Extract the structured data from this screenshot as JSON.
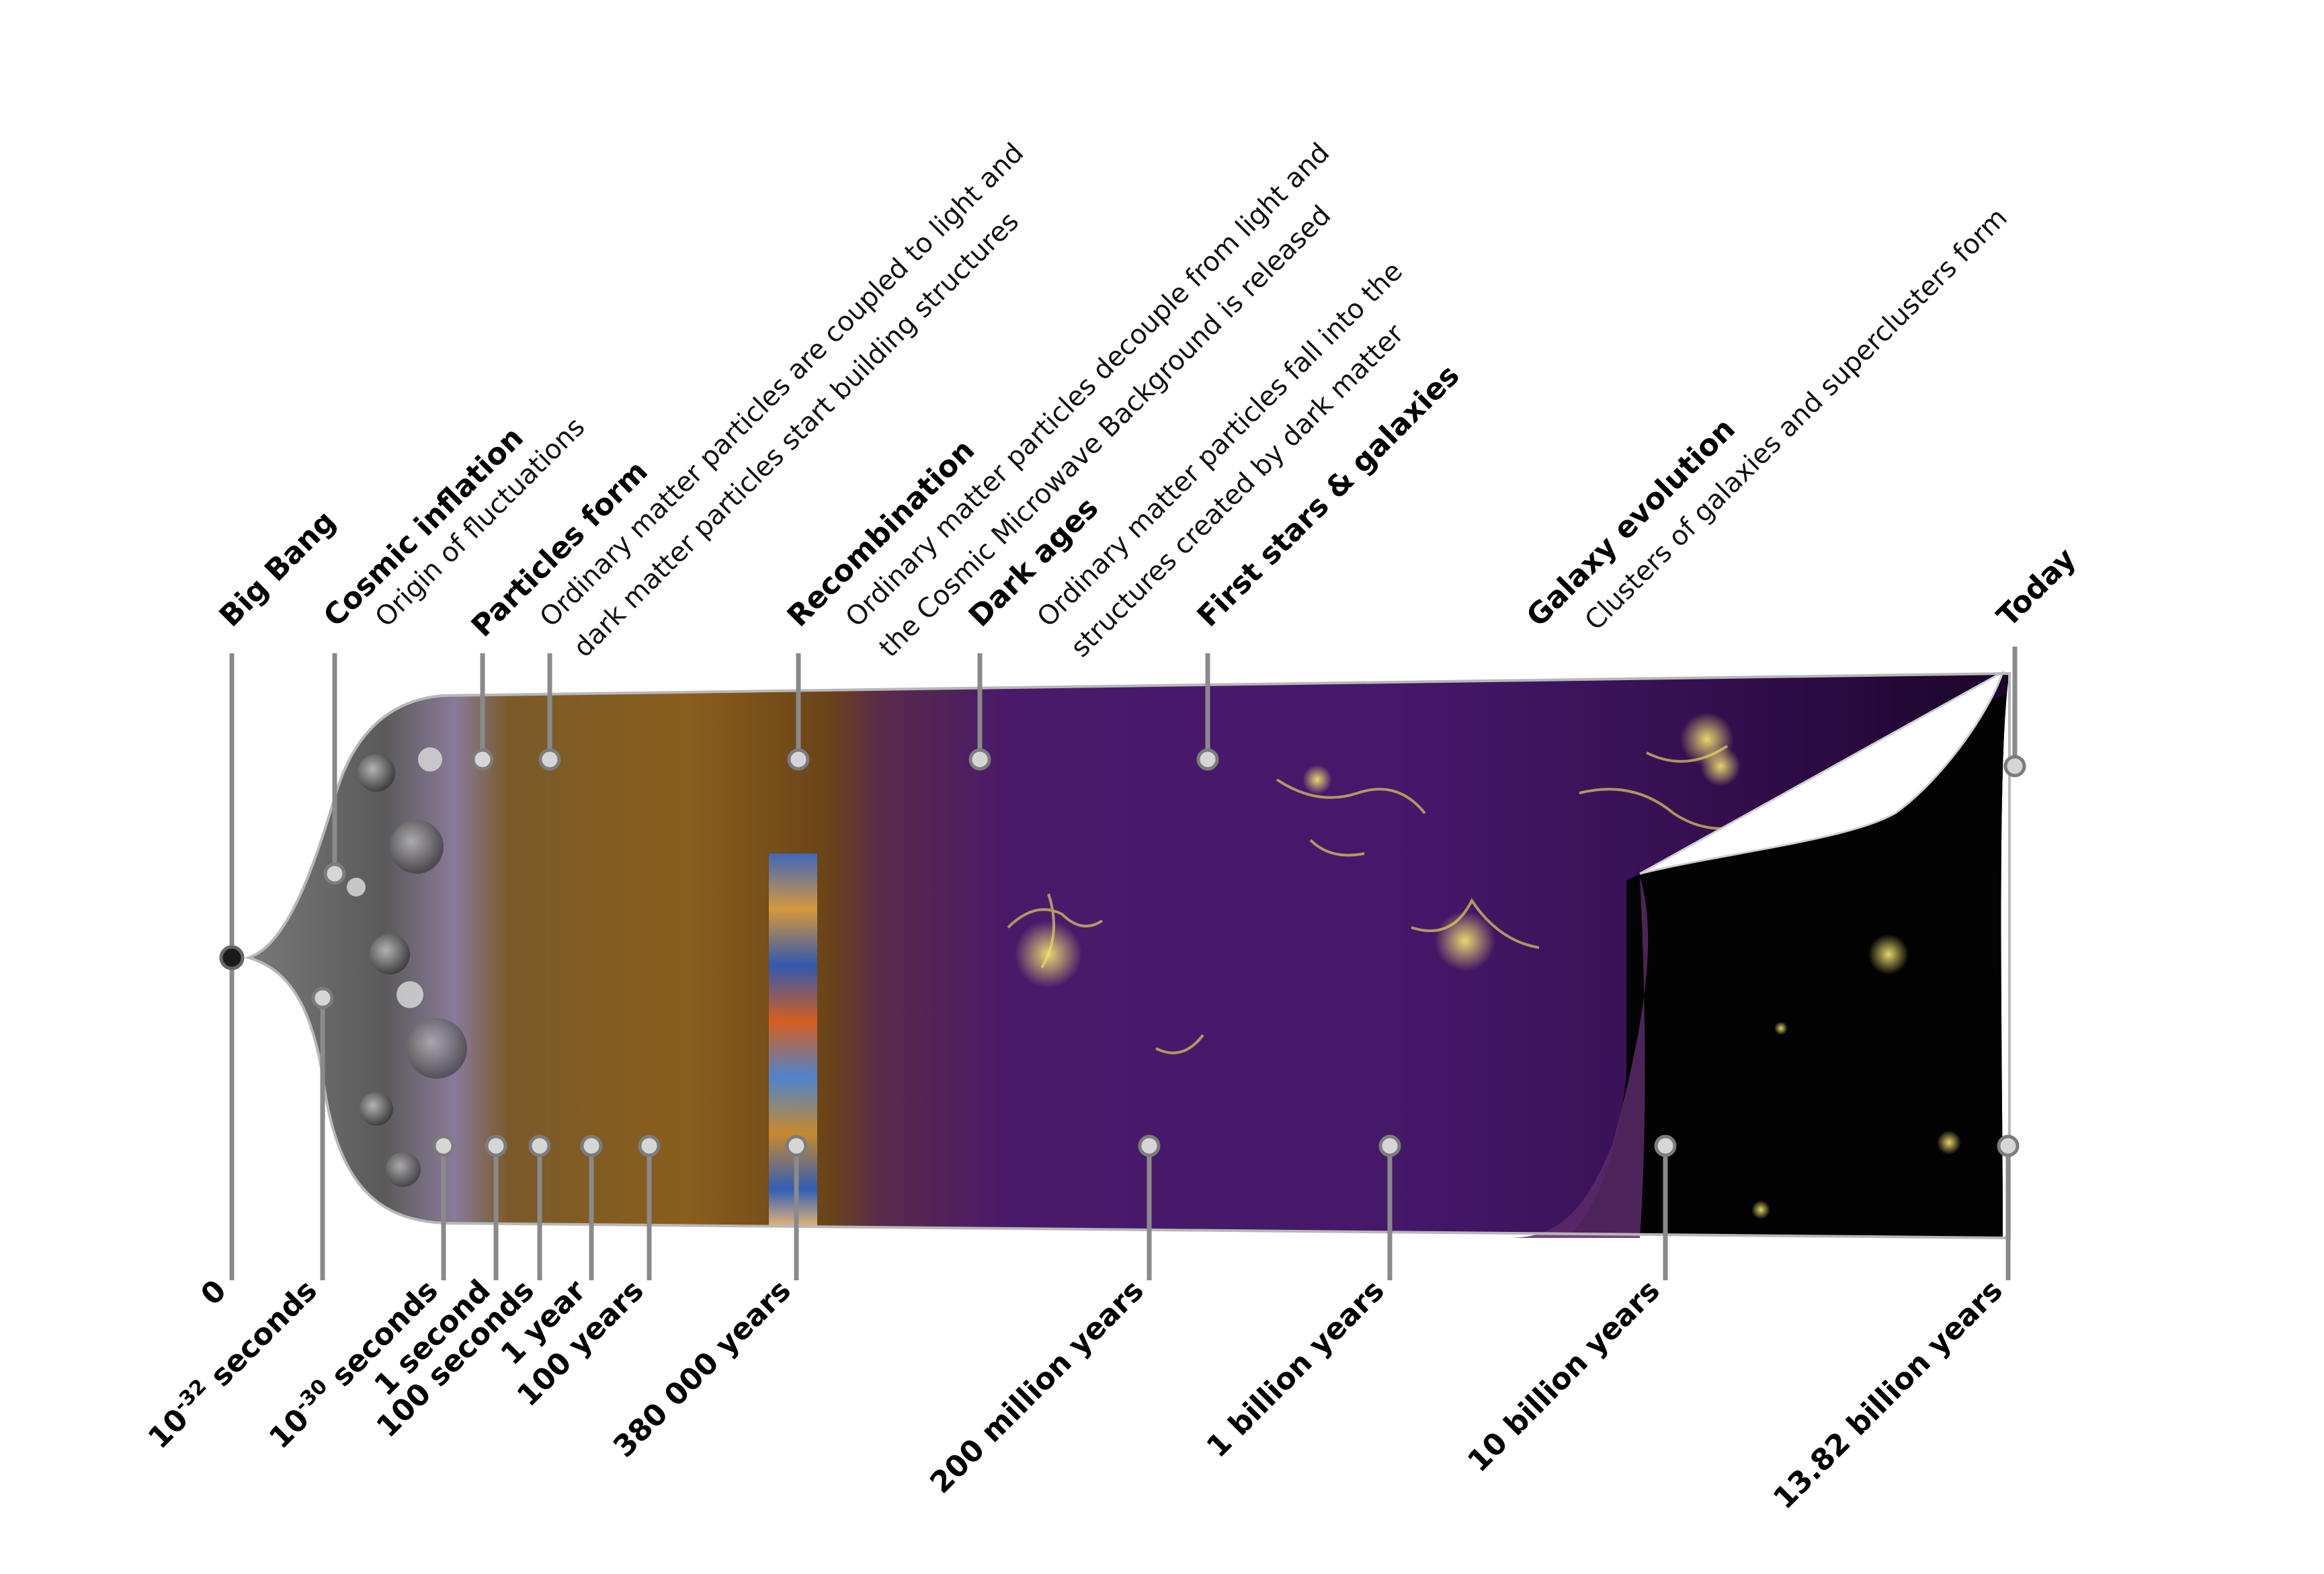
{
  "colors": {
    "inflation_gray": "#8c8c8c",
    "particles_orange": "#8a5a1a",
    "dark_purple": "#4a1a6a",
    "galaxy_yellow": "#e8dc6a",
    "stem_gray": "#8a8a8a"
  },
  "top_labels": [
    {
      "title": "Big Bang",
      "desc": []
    },
    {
      "title": "Cosmic inflation",
      "desc": [
        "Origin of fluctuations"
      ]
    },
    {
      "title": "Particles form",
      "desc": [
        "Ordinary matter particles are coupled to light and",
        "dark matter particles start building structures"
      ]
    },
    {
      "title": "Recombination",
      "desc": [
        "Ordinary matter particles decouple from light and",
        "the Cosmic Microwave Background is released"
      ]
    },
    {
      "title": "Dark ages",
      "desc": [
        "Ordinary  matter  particles  fall  into  the",
        "structures created by dark matter"
      ]
    },
    {
      "title": "First stars & galaxies",
      "desc": []
    },
    {
      "title": "Galaxy evolution",
      "desc": [
        "Clusters of galaxies and superclusters form"
      ]
    },
    {
      "title": "Today",
      "desc": []
    }
  ],
  "bottom_labels": [
    {
      "base": "0",
      "exp": "",
      "tail": ""
    },
    {
      "base": "10",
      "exp": "-32",
      "tail": " seconds"
    },
    {
      "base": "10",
      "exp": "-30",
      "tail": " seconds"
    },
    {
      "base": "1 second",
      "exp": "",
      "tail": ""
    },
    {
      "base": "100 seconds",
      "exp": "",
      "tail": ""
    },
    {
      "base": "1 year",
      "exp": "",
      "tail": ""
    },
    {
      "base": "100 years",
      "exp": "",
      "tail": ""
    },
    {
      "base": "380 000 years",
      "exp": "",
      "tail": ""
    },
    {
      "base": "200 million years",
      "exp": "",
      "tail": ""
    },
    {
      "base": "1 billion years",
      "exp": "",
      "tail": ""
    },
    {
      "base": "10 billion years",
      "exp": "",
      "tail": ""
    },
    {
      "base": "13.82 billion years",
      "exp": "",
      "tail": ""
    }
  ]
}
